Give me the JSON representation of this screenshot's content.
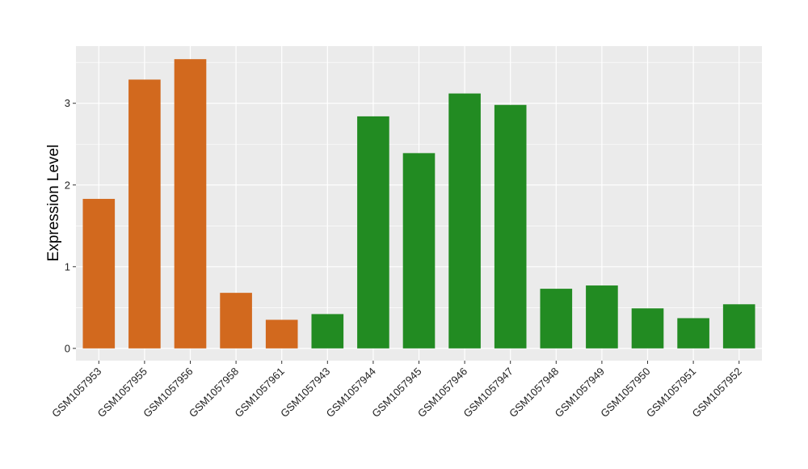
{
  "chart_data": {
    "type": "bar",
    "title": "",
    "xlabel": "",
    "ylabel": "Expression Level",
    "ylim": [
      -0.15,
      3.7
    ],
    "yticks": [
      0,
      1,
      2,
      3
    ],
    "grid": true,
    "categories": [
      "GSM1057953",
      "GSM1057955",
      "GSM1057956",
      "GSM1057958",
      "GSM1057961",
      "GSM1057943",
      "GSM1057944",
      "GSM1057945",
      "GSM1057946",
      "GSM1057947",
      "GSM1057948",
      "GSM1057949",
      "GSM1057950",
      "GSM1057951",
      "GSM1057952"
    ],
    "values": [
      1.83,
      3.29,
      3.54,
      0.68,
      0.35,
      0.42,
      2.84,
      2.39,
      3.12,
      2.98,
      0.73,
      0.77,
      0.49,
      0.37,
      0.54
    ],
    "bar_colors": [
      "#d2691e",
      "#d2691e",
      "#d2691e",
      "#d2691e",
      "#d2691e",
      "#228b22",
      "#228b22",
      "#228b22",
      "#228b22",
      "#228b22",
      "#228b22",
      "#228b22",
      "#228b22",
      "#228b22",
      "#228b22"
    ],
    "panel_background": "#ebebeb",
    "gridline_color": "#ffffff"
  }
}
